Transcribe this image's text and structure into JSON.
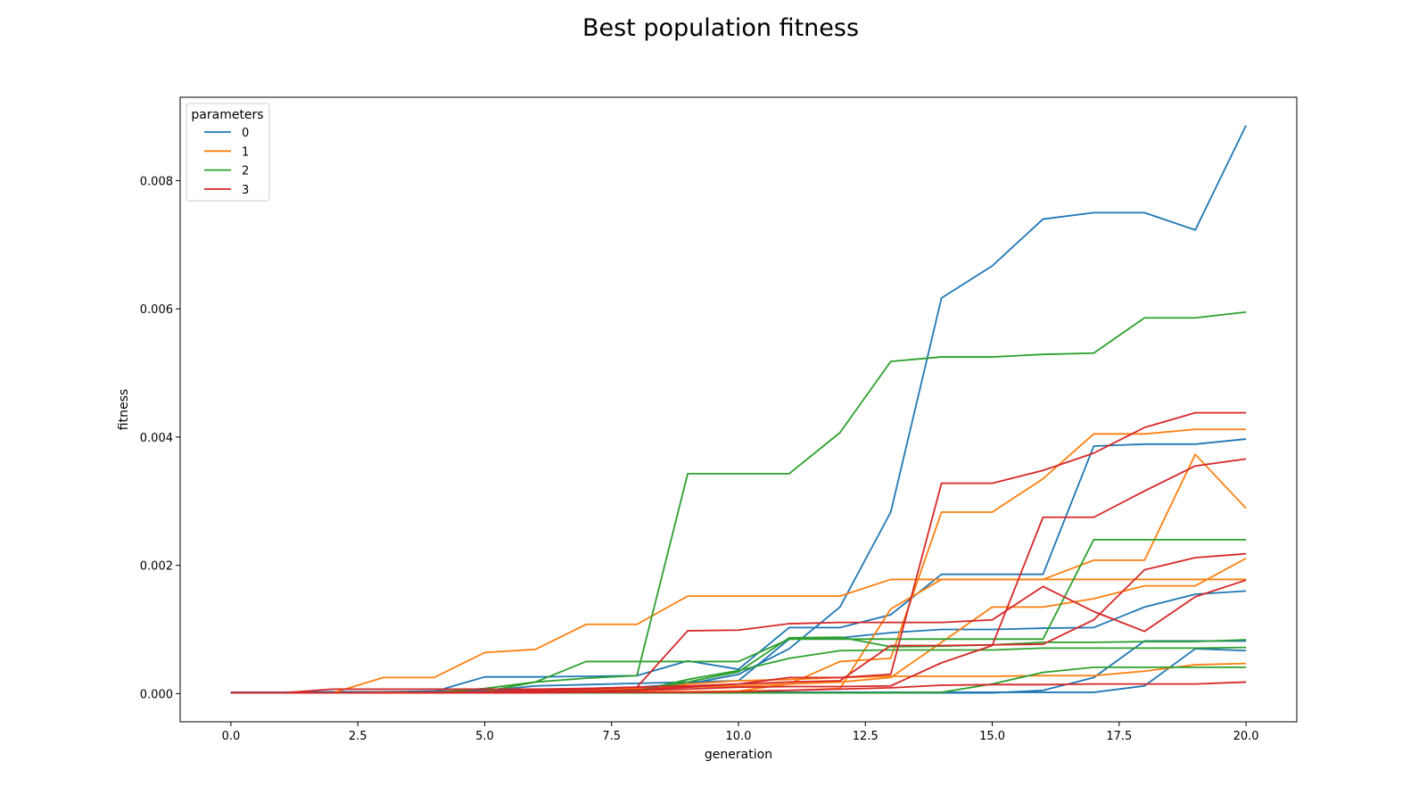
{
  "chart_data": {
    "type": "line",
    "title": "Best population fitness",
    "xlabel": "generation",
    "ylabel": "fitness",
    "xlim": [
      -1,
      21
    ],
    "ylim": [
      -0.00044,
      0.0093
    ],
    "x_ticks": [
      0,
      2.5,
      5,
      7.5,
      10,
      12.5,
      15,
      17.5,
      20
    ],
    "x_tick_labels": [
      "0.0",
      "2.5",
      "5.0",
      "7.5",
      "10.0",
      "12.5",
      "15.0",
      "17.5",
      "20.0"
    ],
    "y_ticks": [
      0,
      0.002,
      0.004,
      0.006,
      0.008
    ],
    "y_tick_labels": [
      "0.000",
      "0.002",
      "0.004",
      "0.006",
      "0.008"
    ],
    "grid": false,
    "legend": {
      "title": "parameters",
      "placement": "top-left"
    },
    "x": [
      0,
      1,
      2,
      3,
      4,
      5,
      6,
      7,
      8,
      9,
      10,
      11,
      12,
      13,
      14,
      15,
      16,
      17,
      18,
      19,
      20
    ],
    "series": [
      {
        "name": "0",
        "color": "#1f77b4",
        "show_in_legend": true,
        "values": [
          2e-05,
          2e-05,
          3e-05,
          3e-05,
          4e-05,
          5e-05,
          6e-05,
          8e-05,
          0.0001,
          0.00015,
          0.0003,
          0.0007,
          0.00135,
          0.00283,
          0.00617,
          0.00667,
          0.0074,
          0.0075,
          0.0075,
          0.00723,
          0.00886
        ]
      },
      {
        "name": "0",
        "color": "#1f77b4",
        "show_in_legend": false,
        "values": [
          2e-05,
          2e-05,
          2e-05,
          3e-05,
          3e-05,
          0.00026,
          0.00026,
          0.00027,
          0.00028,
          0.00051,
          0.00038,
          0.00103,
          0.00103,
          0.00123,
          0.00186,
          0.00186,
          0.00186,
          0.00386,
          0.00389,
          0.00389,
          0.00397
        ]
      },
      {
        "name": "0",
        "color": "#1f77b4",
        "show_in_legend": false,
        "values": [
          2e-05,
          2e-05,
          2e-05,
          2e-05,
          3e-05,
          4e-05,
          0.00012,
          0.00014,
          0.00016,
          0.00018,
          0.0002,
          0.00085,
          0.00087,
          0.00095,
          0.001,
          0.001,
          0.00102,
          0.00103,
          0.00135,
          0.00155,
          0.0016
        ]
      },
      {
        "name": "0",
        "color": "#1f77b4",
        "show_in_legend": false,
        "values": [
          1e-05,
          1e-05,
          1e-05,
          1e-05,
          1e-05,
          1e-05,
          1e-05,
          2e-05,
          2e-05,
          2e-05,
          2e-05,
          2e-05,
          2e-05,
          2e-05,
          2e-05,
          2e-05,
          2e-05,
          2e-05,
          0.00012,
          0.0007,
          0.00067
        ]
      },
      {
        "name": "0",
        "color": "#1f77b4",
        "show_in_legend": false,
        "values": [
          1e-05,
          1e-05,
          1e-05,
          1e-05,
          1e-05,
          1e-05,
          1e-05,
          1e-05,
          1e-05,
          1e-05,
          1e-05,
          1e-05,
          1e-05,
          1e-05,
          1e-05,
          1e-05,
          5e-05,
          0.00025,
          0.00082,
          0.00082,
          0.00082
        ]
      },
      {
        "name": "1",
        "color": "#ff7f0e",
        "show_in_legend": true,
        "values": [
          1e-05,
          1e-05,
          1e-05,
          0.00025,
          0.00025,
          0.00064,
          0.00069,
          0.00108,
          0.00108,
          0.00152,
          0.00152,
          0.00152,
          0.00152,
          0.00178,
          0.00178,
          0.00178,
          0.00178,
          0.00178,
          0.00178,
          0.00178,
          0.00178
        ]
      },
      {
        "name": "1",
        "color": "#ff7f0e",
        "show_in_legend": false,
        "values": [
          1e-05,
          1e-05,
          1e-05,
          2e-05,
          2e-05,
          3e-05,
          4e-05,
          6e-05,
          8e-05,
          0.0001,
          0.00012,
          0.00015,
          0.0005,
          0.00055,
          0.00283,
          0.00283,
          0.00335,
          0.00405,
          0.00405,
          0.00412,
          0.00412
        ]
      },
      {
        "name": "1",
        "color": "#ff7f0e",
        "show_in_legend": false,
        "values": [
          1e-05,
          1e-05,
          1e-05,
          1e-05,
          2e-05,
          2e-05,
          2e-05,
          3e-05,
          3e-05,
          3e-05,
          4e-05,
          5e-05,
          8e-05,
          0.00132,
          0.00178,
          0.00178,
          0.00178,
          0.00208,
          0.00208,
          0.00373,
          0.00289
        ]
      },
      {
        "name": "1",
        "color": "#ff7f0e",
        "show_in_legend": false,
        "values": [
          1e-05,
          1e-05,
          1e-05,
          1e-05,
          2e-05,
          2e-05,
          2e-05,
          3e-05,
          3e-05,
          3e-05,
          4e-05,
          0.00015,
          0.00018,
          0.00025,
          0.0008,
          0.00135,
          0.00135,
          0.00148,
          0.00168,
          0.00168,
          0.00211
        ]
      },
      {
        "name": "1",
        "color": "#ff7f0e",
        "show_in_legend": false,
        "values": [
          1e-05,
          1e-05,
          1e-05,
          1e-05,
          1e-05,
          2e-05,
          2e-05,
          3e-05,
          3e-05,
          0.00015,
          0.0002,
          0.00022,
          0.00025,
          0.00027,
          0.00027,
          0.00027,
          0.00028,
          0.00028,
          0.00035,
          0.00045,
          0.00047
        ]
      },
      {
        "name": "2",
        "color": "#2ca02c",
        "show_in_legend": true,
        "values": [
          1e-05,
          1e-05,
          1e-05,
          1e-05,
          2e-05,
          8e-05,
          0.00018,
          0.00024,
          0.00028,
          0.00343,
          0.00343,
          0.00343,
          0.00407,
          0.00518,
          0.00525,
          0.00525,
          0.00529,
          0.00531,
          0.00586,
          0.00586,
          0.00595
        ]
      },
      {
        "name": "2",
        "color": "#2ca02c",
        "show_in_legend": false,
        "values": [
          1e-05,
          1e-05,
          1e-05,
          1e-05,
          2e-05,
          3e-05,
          0.00018,
          0.0005,
          0.0005,
          0.0005,
          0.0005,
          0.00085,
          0.00085,
          0.00085,
          0.00085,
          0.00085,
          0.00085,
          0.0024,
          0.0024,
          0.0024,
          0.0024
        ]
      },
      {
        "name": "2",
        "color": "#2ca02c",
        "show_in_legend": false,
        "values": [
          1e-05,
          1e-05,
          1e-05,
          1e-05,
          1e-05,
          2e-05,
          3e-05,
          4e-05,
          5e-05,
          0.00018,
          0.00034,
          0.00087,
          0.00088,
          0.00073,
          0.00074,
          0.00076,
          0.0008,
          0.0008,
          0.00081,
          0.00081,
          0.00084
        ]
      },
      {
        "name": "2",
        "color": "#2ca02c",
        "show_in_legend": false,
        "values": [
          1e-05,
          1e-05,
          1e-05,
          1e-05,
          1e-05,
          2e-05,
          2e-05,
          3e-05,
          4e-05,
          0.00022,
          0.00036,
          0.00055,
          0.00067,
          0.00068,
          0.00068,
          0.00068,
          0.00071,
          0.00071,
          0.00071,
          0.00071,
          0.00072
        ]
      },
      {
        "name": "2",
        "color": "#2ca02c",
        "show_in_legend": false,
        "values": [
          1e-05,
          1e-05,
          1e-05,
          1e-05,
          1e-05,
          1e-05,
          1e-05,
          1e-05,
          1e-05,
          1e-05,
          1e-05,
          1e-05,
          1e-05,
          1e-05,
          2e-05,
          0.00015,
          0.00033,
          0.00041,
          0.00041,
          0.00041,
          0.00041
        ]
      },
      {
        "name": "3",
        "color": "#d62728",
        "show_in_legend": true,
        "values": [
          1e-05,
          1e-05,
          7e-05,
          7e-05,
          7e-05,
          7e-05,
          7e-05,
          8e-05,
          0.0001,
          0.00098,
          0.00099,
          0.00109,
          0.00111,
          0.00111,
          0.00111,
          0.00115,
          0.00167,
          0.00128,
          0.00097,
          0.00151,
          0.00177
        ]
      },
      {
        "name": "3",
        "color": "#d62728",
        "show_in_legend": false,
        "values": [
          1e-05,
          1e-05,
          1e-05,
          1e-05,
          2e-05,
          3e-05,
          5e-05,
          7e-05,
          0.0001,
          0.00012,
          0.00015,
          0.00025,
          0.00025,
          0.0003,
          0.00328,
          0.00328,
          0.00348,
          0.00375,
          0.00415,
          0.00438,
          0.00438
        ]
      },
      {
        "name": "3",
        "color": "#d62728",
        "show_in_legend": false,
        "values": [
          1e-05,
          1e-05,
          1e-05,
          1e-05,
          1e-05,
          2e-05,
          3e-05,
          4e-05,
          5e-05,
          7e-05,
          0.0001,
          0.00011,
          0.00011,
          0.00012,
          0.00048,
          0.00075,
          0.00275,
          0.00275,
          0.00316,
          0.00355,
          0.00366
        ]
      },
      {
        "name": "3",
        "color": "#d62728",
        "show_in_legend": false,
        "values": [
          1e-05,
          1e-05,
          1e-05,
          1e-05,
          1e-05,
          2e-05,
          3e-05,
          4e-05,
          6e-05,
          0.0001,
          0.00015,
          0.00018,
          0.0002,
          0.00075,
          0.00075,
          0.00076,
          0.00077,
          0.00115,
          0.00193,
          0.00212,
          0.00218
        ]
      },
      {
        "name": "3",
        "color": "#d62728",
        "show_in_legend": false,
        "values": [
          1e-05,
          1e-05,
          1e-05,
          1e-05,
          1e-05,
          1e-05,
          1e-05,
          2e-05,
          2e-05,
          2e-05,
          3e-05,
          5e-05,
          7e-05,
          9e-05,
          0.00013,
          0.00014,
          0.00014,
          0.00015,
          0.00015,
          0.00015,
          0.00018
        ]
      }
    ]
  }
}
